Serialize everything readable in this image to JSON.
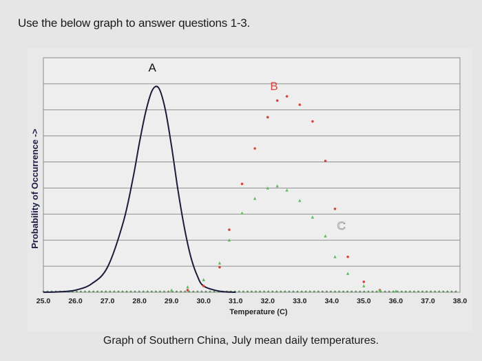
{
  "header": {
    "instruction": "Use the below graph to answer questions 1-3."
  },
  "caption": "Graph of Southern China, July mean daily temperatures.",
  "chart_data": {
    "type": "line",
    "title": "",
    "xlabel": "Temperature (C)",
    "ylabel": "Probability of Occurrence ->",
    "x_ticks": [
      "25.0",
      "26.0",
      "27.0",
      "28.0",
      "29.0",
      "30.0",
      "31.0",
      "32.0",
      "33.0",
      "34.0",
      "35.0",
      "36.0",
      "37.0",
      "38.0"
    ],
    "xlim": [
      25.0,
      38.0
    ],
    "ylim": [
      0,
      1
    ],
    "grid": true,
    "series": [
      {
        "name": "A",
        "style": "solid-line",
        "color": "#1a1a3a",
        "x": [
          25.0,
          25.5,
          26.0,
          26.5,
          27.0,
          27.5,
          27.8,
          28.0,
          28.2,
          28.4,
          28.6,
          28.8,
          29.0,
          29.2,
          29.4,
          29.6,
          29.8,
          30.0,
          30.5,
          31.0
        ],
        "y": [
          0.0,
          0.002,
          0.01,
          0.04,
          0.12,
          0.34,
          0.55,
          0.72,
          0.87,
          0.97,
          0.98,
          0.88,
          0.7,
          0.49,
          0.31,
          0.17,
          0.08,
          0.03,
          0.005,
          0.0
        ]
      },
      {
        "name": "B",
        "style": "dotted",
        "color": "#d9443a",
        "x": [
          25.0,
          26.0,
          27.0,
          28.0,
          29.0,
          29.5,
          30.0,
          30.5,
          30.8,
          31.2,
          31.6,
          32.0,
          32.3,
          32.6,
          33.0,
          33.4,
          33.8,
          34.1,
          34.5,
          35.0,
          35.5,
          36.0,
          37.0,
          38.0
        ],
        "y": [
          0.0,
          0.0,
          0.0,
          0.0,
          0.0,
          0.01,
          0.03,
          0.12,
          0.3,
          0.52,
          0.69,
          0.84,
          0.92,
          0.94,
          0.9,
          0.82,
          0.63,
          0.4,
          0.17,
          0.05,
          0.01,
          0.0,
          0.0,
          0.0
        ]
      },
      {
        "name": "C",
        "style": "dotted",
        "color": "#5dbb5d",
        "x": [
          25.0,
          26.0,
          27.0,
          28.0,
          29.0,
          29.5,
          30.0,
          30.5,
          30.8,
          31.2,
          31.6,
          32.0,
          32.3,
          32.6,
          33.0,
          33.4,
          33.8,
          34.1,
          34.5,
          35.0,
          35.5,
          36.0,
          37.0,
          38.0
        ],
        "y": [
          0.0,
          0.0,
          0.0,
          0.0,
          0.01,
          0.025,
          0.06,
          0.14,
          0.25,
          0.38,
          0.45,
          0.5,
          0.51,
          0.49,
          0.44,
          0.36,
          0.27,
          0.17,
          0.09,
          0.03,
          0.01,
          0.005,
          0.0,
          0.0
        ]
      }
    ]
  }
}
